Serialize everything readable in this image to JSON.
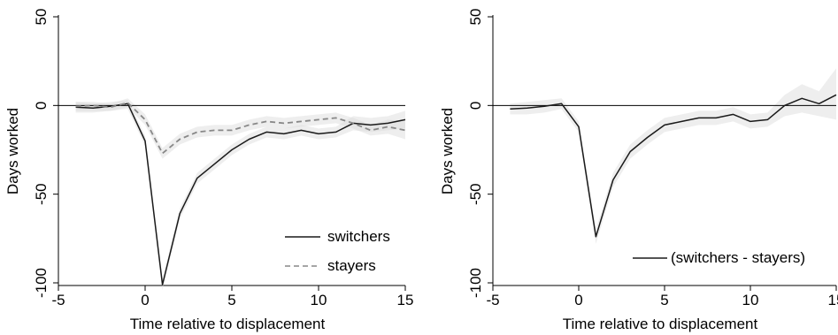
{
  "chart_data": [
    {
      "type": "line",
      "xlabel": "Time relative to displacement",
      "ylabel": "Days worked",
      "xlim": [
        -5,
        15
      ],
      "ylim": [
        -100,
        50
      ],
      "xticks": [
        -5,
        0,
        5,
        10,
        15
      ],
      "yticks": [
        50,
        0,
        -50,
        -100
      ],
      "xtick_labels": [
        "-5",
        "0",
        "5",
        "10",
        "15"
      ],
      "ytick_labels": [
        "50",
        "0",
        "-50",
        "-100"
      ],
      "reference_line_y": 0,
      "grid": false,
      "legend_position": "bottom-right",
      "series": [
        {
          "name": "switchers",
          "color": "#1a1a1a",
          "dash": "solid",
          "x": [
            -4,
            -3,
            -2,
            -1,
            0,
            1,
            2,
            3,
            4,
            5,
            6,
            7,
            8,
            9,
            10,
            11,
            12,
            13,
            14,
            15
          ],
          "values": [
            -1,
            -1.5,
            -0.5,
            1,
            -20,
            -101,
            -61,
            -41,
            -33,
            -25,
            -19,
            -15,
            -16,
            -14,
            -16,
            -15,
            -10,
            -11,
            -10,
            -8
          ],
          "ci_lower": [
            -4,
            -4,
            -3,
            -2,
            -23,
            -104,
            -64,
            -44,
            -36,
            -28,
            -22,
            -18,
            -19,
            -17,
            -19,
            -18,
            -14,
            -15,
            -14,
            -13
          ],
          "ci_upper": [
            2,
            1,
            2,
            3,
            -17,
            -98,
            -58,
            -38,
            -30,
            -22,
            -16,
            -12,
            -13,
            -11,
            -13,
            -12,
            -6,
            -7,
            -6,
            -3
          ]
        },
        {
          "name": "stayers",
          "color": "#888888",
          "dash": "dashed",
          "x": [
            -4,
            -3,
            -2,
            -1,
            0,
            1,
            2,
            3,
            4,
            5,
            6,
            7,
            8,
            9,
            10,
            11,
            12,
            13,
            14,
            15
          ],
          "values": [
            -0.5,
            0,
            -1,
            1.5,
            -8,
            -27,
            -19,
            -15,
            -14,
            -14,
            -11,
            -9,
            -10,
            -9,
            -8,
            -7,
            -10,
            -14,
            -12,
            -14
          ],
          "ci_lower": [
            -3,
            -3,
            -3,
            -1,
            -11,
            -30,
            -22,
            -18,
            -17,
            -17,
            -14,
            -12,
            -13,
            -12,
            -11,
            -10,
            -13,
            -17,
            -16,
            -19
          ],
          "ci_upper": [
            2,
            2,
            1,
            4,
            -5,
            -24,
            -16,
            -12,
            -11,
            -11,
            -8,
            -6,
            -7,
            -6,
            -5,
            -4,
            -7,
            -11,
            -8,
            -9
          ]
        }
      ]
    },
    {
      "type": "line",
      "xlabel": "Time relative to displacement",
      "ylabel": "Days worked",
      "xlim": [
        -5,
        15
      ],
      "ylim": [
        -100,
        50
      ],
      "xticks": [
        -5,
        0,
        5,
        10,
        15
      ],
      "yticks": [
        50,
        0,
        -50,
        -100
      ],
      "xtick_labels": [
        "-5",
        "0",
        "5",
        "10",
        "15"
      ],
      "ytick_labels": [
        "50",
        "0",
        "-50",
        "-100"
      ],
      "reference_line_y": 0,
      "grid": false,
      "legend_position": "bottom-right",
      "series": [
        {
          "name": "(switchers - stayers)",
          "color": "#1a1a1a",
          "dash": "solid",
          "x": [
            -4,
            -3,
            -2,
            -1,
            0,
            1,
            2,
            3,
            4,
            5,
            6,
            7,
            8,
            9,
            10,
            11,
            12,
            13,
            14,
            15
          ],
          "values": [
            -2,
            -1.5,
            -0.5,
            1,
            -12,
            -74,
            -42,
            -26,
            -18,
            -11,
            -9,
            -7,
            -7,
            -5,
            -9,
            -8,
            0,
            4,
            1,
            6
          ],
          "ci_lower": [
            -5,
            -5,
            -4,
            -2,
            -15,
            -78,
            -46,
            -30,
            -22,
            -15,
            -13,
            -11,
            -11,
            -9,
            -13,
            -12,
            -6,
            -4,
            -6,
            -8
          ],
          "ci_upper": [
            1,
            2,
            3,
            4,
            -9,
            -70,
            -38,
            -22,
            -14,
            -7,
            -5,
            -3,
            -3,
            -1,
            -5,
            -4,
            6,
            12,
            8,
            21
          ]
        }
      ]
    }
  ]
}
